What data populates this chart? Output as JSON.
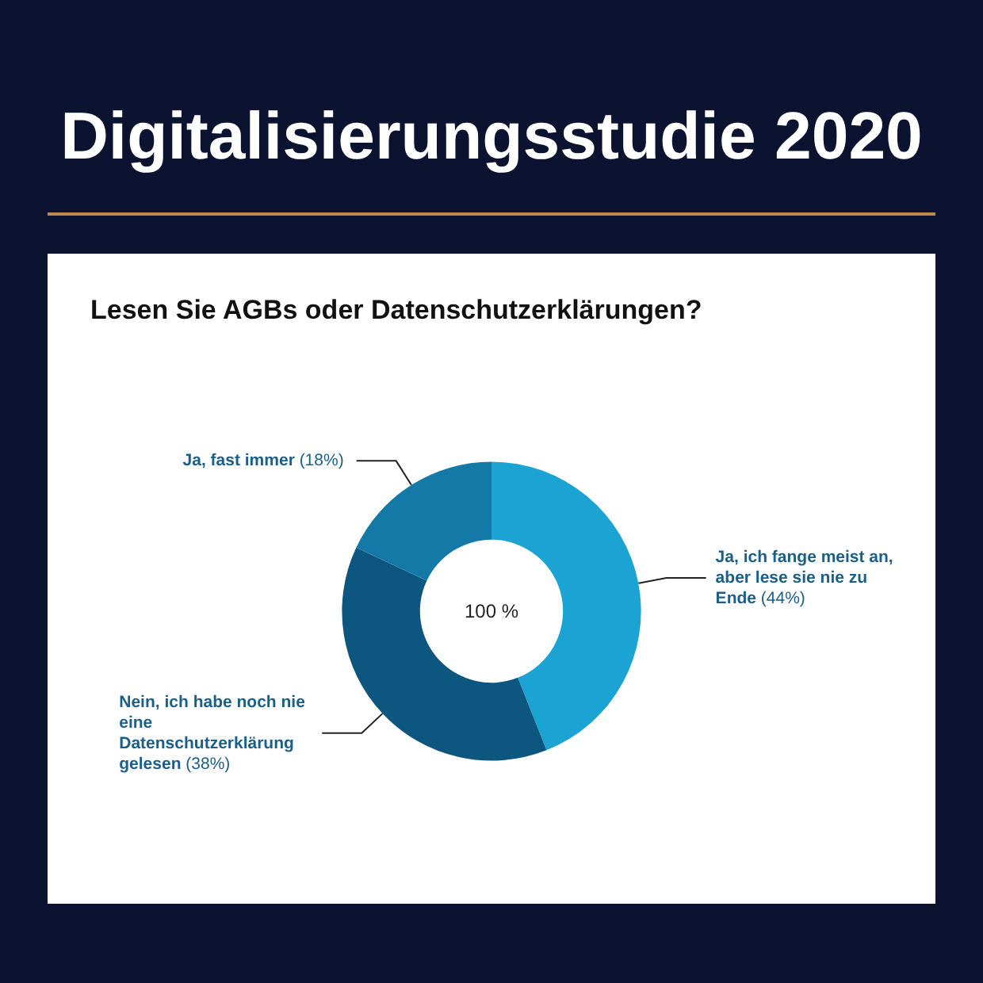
{
  "chart_data": {
    "type": "donut",
    "title": "Digitalisierungsstudie 2020",
    "subtitle": "Lesen Sie AGBs oder Datenschutzerklärungen?",
    "categories": [
      "Ja, ich fange meist an, aber lese sie nie zu Ende",
      "Nein, ich habe noch nie eine Datenschutzerklärung gelesen",
      "Ja, fast immer"
    ],
    "values": [
      44,
      38,
      18
    ],
    "value_labels": [
      "(44%)",
      "(38%)",
      "(18%)"
    ],
    "colors": [
      "#1ba3d3",
      "#0c5680",
      "#1479a6"
    ],
    "annotations": [
      "100 %"
    ],
    "legend": false
  }
}
